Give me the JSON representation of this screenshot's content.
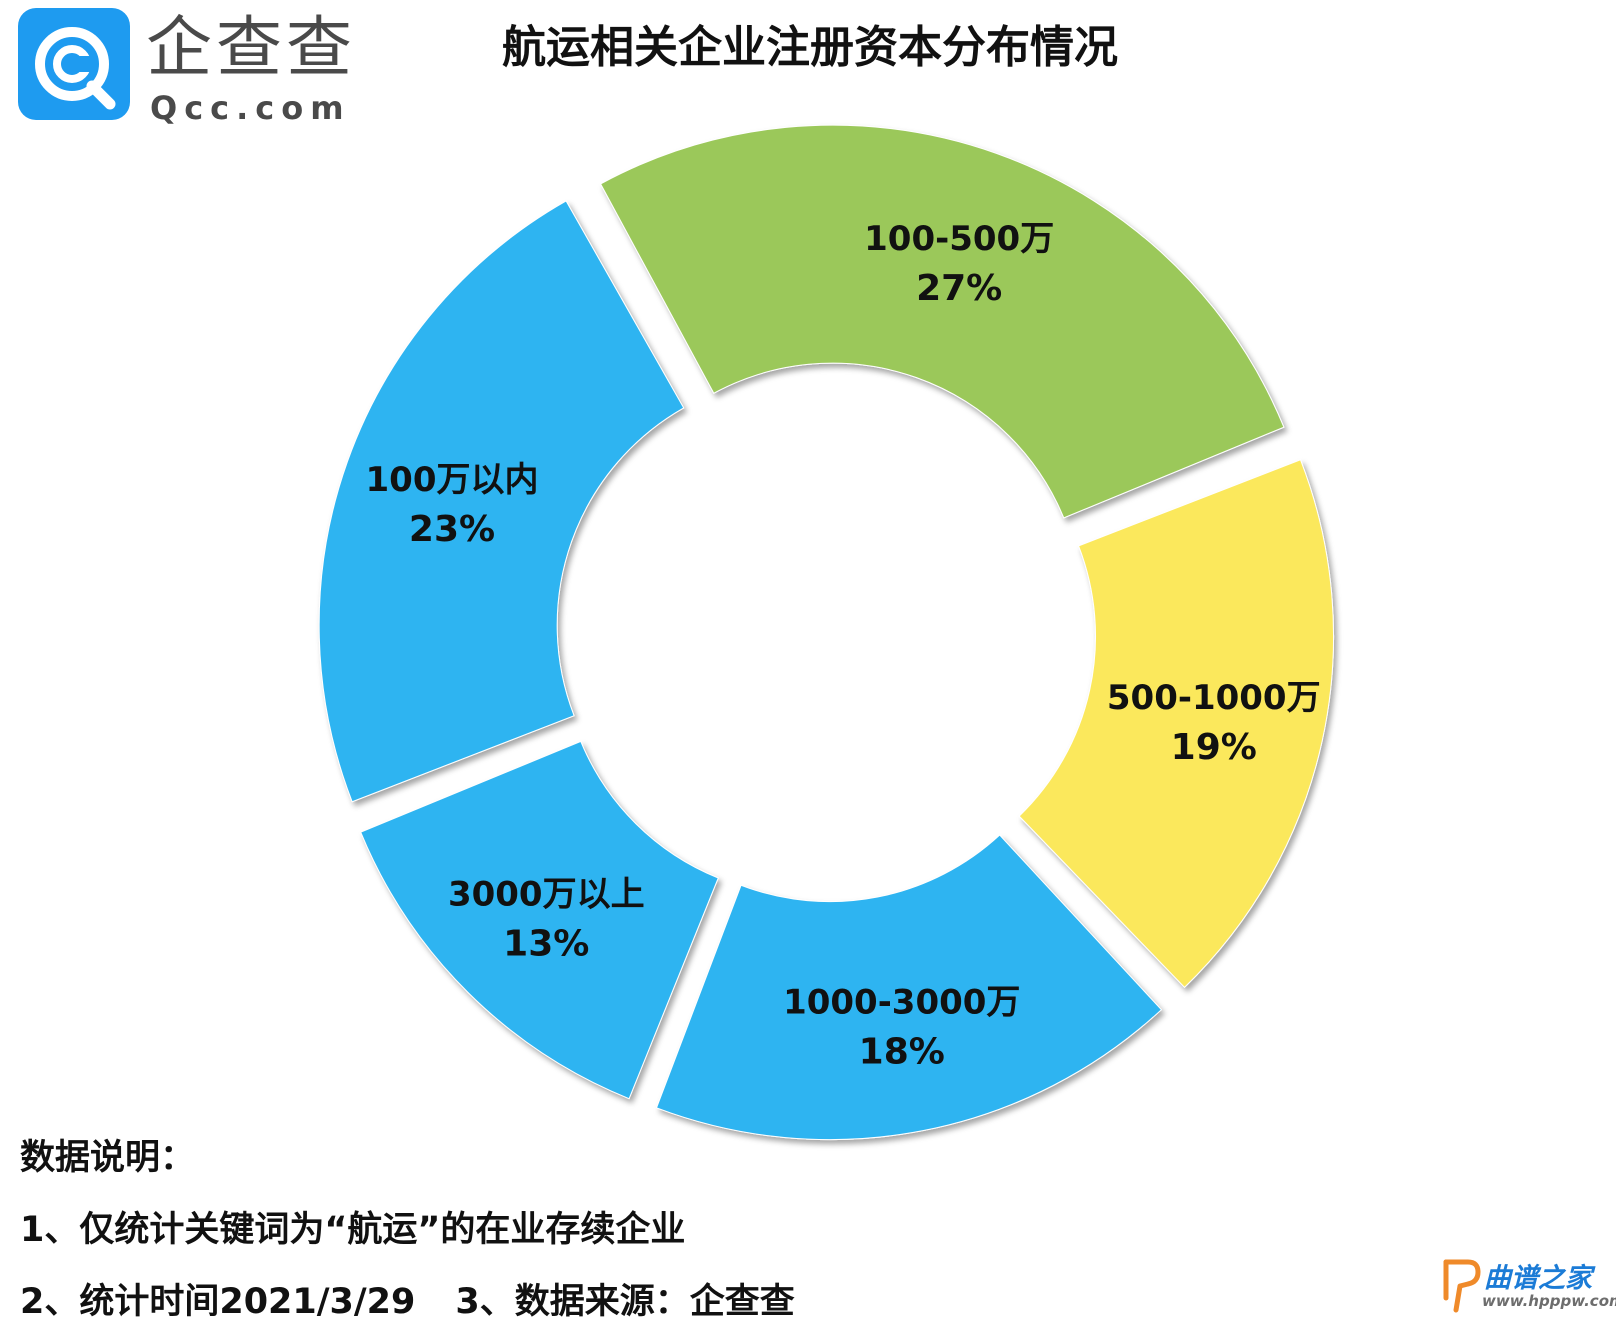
{
  "header": {
    "logo_name": "企查查",
    "logo_domain": "Qcc.com",
    "title": "航运相关企业注册资本分布情况"
  },
  "chart_data": {
    "type": "pie",
    "variant": "donut",
    "title": "航运相关企业注册资本分布情况",
    "categories": [
      "100-500万",
      "500-1000万",
      "1000-3000万",
      "3000万以上",
      "100万以内"
    ],
    "values": [
      27,
      19,
      18,
      13,
      23
    ],
    "labels": [
      "27%",
      "19%",
      "18%",
      "13%",
      "23%"
    ],
    "unit": "%",
    "exploded": true,
    "colors": [
      "#9bc85a",
      "#fbe85c",
      "#2fb4f1",
      "#2fb4f1",
      "#2fb4f1"
    ]
  },
  "notes": {
    "heading": "数据说明：",
    "line1": "1、仅统计关键词为“航运”的在业存续企业",
    "line2a": "2、统计时间2021/3/29",
    "line2b": "3、数据来源：企查查"
  },
  "watermark": {
    "name": "曲谱之家",
    "url": "www.hpppw.com"
  },
  "colors": {
    "logo_blue": "#1e9bf0",
    "text": "#111111",
    "watermark": "#1b7bd6"
  }
}
